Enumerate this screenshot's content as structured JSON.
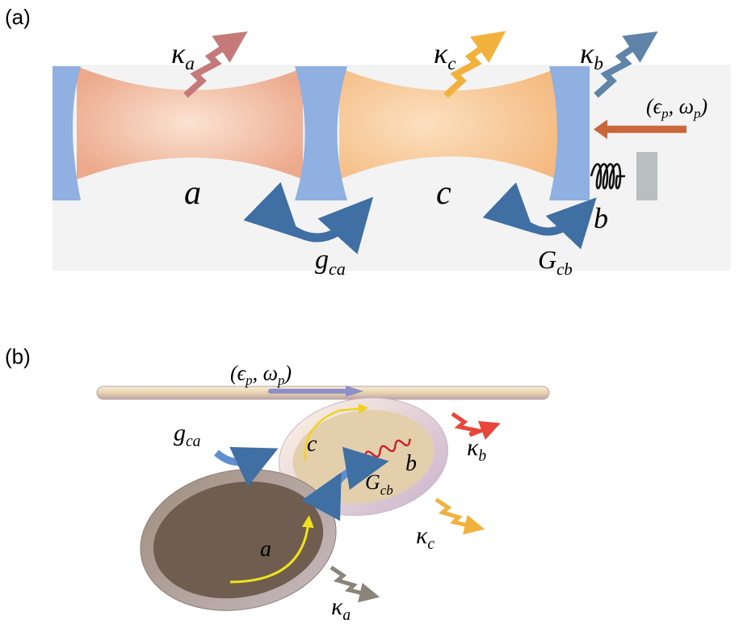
{
  "panel_a": {
    "label": "(a)",
    "kappa_a": {
      "base": "κ",
      "sub": "a"
    },
    "kappa_c": {
      "base": "κ",
      "sub": "c"
    },
    "kappa_b": {
      "base": "κ",
      "sub": "b"
    },
    "pump": [
      {
        "base": "(ϵ",
        "sub": "p"
      },
      {
        "base": ", ω",
        "sub": "p"
      },
      {
        "base": ")"
      }
    ],
    "mode_a": "a",
    "mode_c": "c",
    "mode_b": "b",
    "g_ca": {
      "base": "g",
      "sub": "ca"
    },
    "G_cb": {
      "base": "G",
      "sub": "cb"
    }
  },
  "panel_b": {
    "label": "(b)",
    "pump": [
      {
        "base": "(ϵ",
        "sub": "p"
      },
      {
        "base": ", ω",
        "sub": "p"
      },
      {
        "base": ")"
      }
    ],
    "g_ca": {
      "base": "g",
      "sub": "ca"
    },
    "mode_c": "c",
    "mode_b": "b",
    "G_cb": {
      "base": "G",
      "sub": "cb"
    },
    "kappa_b": {
      "base": "κ",
      "sub": "b"
    },
    "kappa_c": {
      "base": "κ",
      "sub": "c"
    },
    "mode_a": "a",
    "kappa_a": {
      "base": "κ",
      "sub": "a"
    }
  }
}
